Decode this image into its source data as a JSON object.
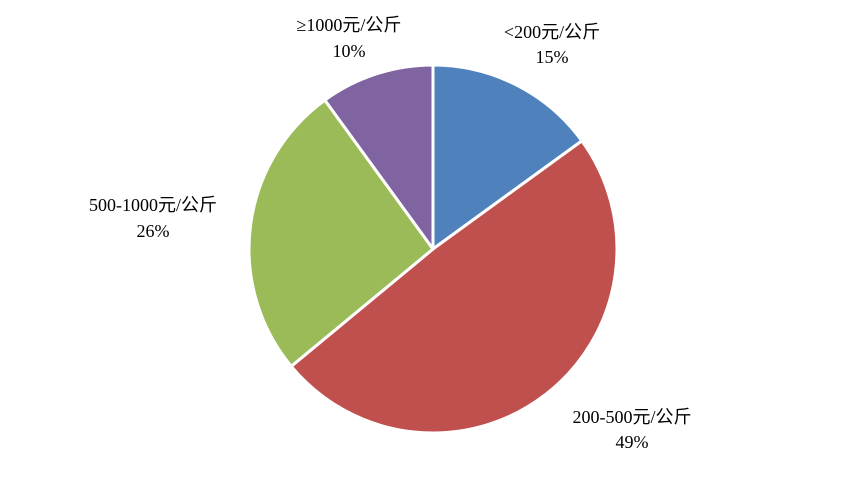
{
  "chart_data": {
    "type": "pie",
    "title": "",
    "start_angle_deg": 0,
    "direction": "clockwise",
    "legend": "none",
    "slices": [
      {
        "label": "<200元/公斤",
        "value": 15,
        "percent_label": "15%",
        "color": "#4f81bd"
      },
      {
        "label": "200-500元/公斤",
        "value": 49,
        "percent_label": "49%",
        "color": "#c0504d"
      },
      {
        "label": "500-1000元/公斤",
        "value": 26,
        "percent_label": "26%",
        "color": "#9bbb59"
      },
      {
        "label": "≥1000元/公斤",
        "value": 10,
        "percent_label": "10%",
        "color": "#8064a2"
      }
    ]
  }
}
